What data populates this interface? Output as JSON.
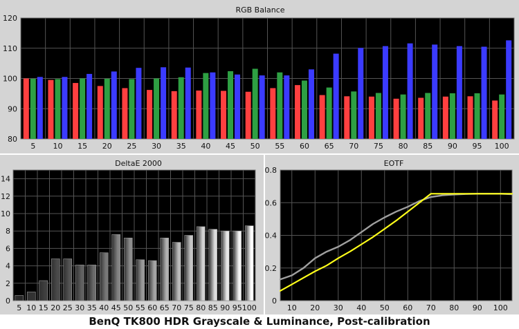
{
  "caption": "BenQ TK800 HDR Grayscale & Luminance, Post-calibration",
  "colors": {
    "panel_bg": "#d4d4d4",
    "plot_bg": "#000000",
    "red": "#ff4040",
    "green": "#2ea043",
    "blue": "#3b3bff",
    "eotf_target": "#ffff1a",
    "eotf_measured": "#a0a0a0"
  },
  "chart_data": [
    {
      "type": "bar",
      "title": "RGB Balance",
      "categories": [
        "5",
        "10",
        "15",
        "20",
        "25",
        "30",
        "35",
        "40",
        "45",
        "50",
        "55",
        "60",
        "65",
        "70",
        "75",
        "80",
        "85",
        "90",
        "95",
        "100"
      ],
      "ylim": [
        80,
        120
      ],
      "yticks": [
        "80",
        "90",
        "100",
        "110",
        "120"
      ],
      "grid": true,
      "series": [
        {
          "color": "red",
          "values": [
            100,
            99.5,
            98.5,
            97.5,
            96.8,
            96.2,
            95.8,
            96,
            95.9,
            95.6,
            96.8,
            97.8,
            94.5,
            94.1,
            94,
            93.3,
            93.6,
            94,
            94.1,
            92.7
          ]
        },
        {
          "color": "green",
          "values": [
            99.9,
            99.8,
            100,
            99.9,
            99.8,
            100,
            100.4,
            101.8,
            102.4,
            103.2,
            102,
            99.3,
            97,
            95.7,
            95.2,
            94.7,
            95.2,
            95.1,
            95.1,
            94.7
          ]
        },
        {
          "color": "blue",
          "values": [
            100.5,
            100.5,
            101.5,
            102.3,
            103.5,
            103.7,
            103.6,
            102,
            101.3,
            101,
            101,
            103,
            108.2,
            110.1,
            110.7,
            111.6,
            111.2,
            110.7,
            110.5,
            112.6
          ]
        }
      ]
    },
    {
      "type": "bar",
      "title": "DeltaE 2000",
      "categories": [
        "5",
        "10",
        "15",
        "20",
        "25",
        "30",
        "35",
        "40",
        "45",
        "50",
        "55",
        "60",
        "65",
        "70",
        "75",
        "80",
        "85",
        "90",
        "95",
        "100"
      ],
      "values": [
        0.6,
        1.0,
        2.3,
        4.8,
        4.8,
        4.1,
        4.1,
        5.5,
        7.6,
        7.2,
        4.7,
        4.6,
        7.2,
        6.7,
        7.5,
        8.5,
        8.2,
        8.0,
        8.0,
        8.6
      ],
      "ylim": [
        0,
        15
      ],
      "yticks": [
        "0",
        "2",
        "4",
        "6",
        "8",
        "10",
        "12",
        "14"
      ],
      "grid": true
    },
    {
      "type": "line",
      "title": "EOTF",
      "xlim": [
        5,
        105
      ],
      "ylim": [
        0,
        0.8
      ],
      "xticks": [
        "10",
        "20",
        "30",
        "40",
        "50",
        "60",
        "70",
        "80",
        "90",
        "100"
      ],
      "yticks": [
        "0",
        "0.2",
        "0.4",
        "0.6",
        "0.8"
      ],
      "grid": true,
      "series": [
        {
          "color": "eotf_target",
          "x": [
            5,
            10,
            15,
            20,
            25,
            30,
            35,
            40,
            45,
            50,
            55,
            60,
            65,
            70,
            75,
            80,
            85,
            90,
            95,
            100,
            105
          ],
          "y": [
            0.06,
            0.1,
            0.14,
            0.18,
            0.215,
            0.26,
            0.3,
            0.345,
            0.39,
            0.44,
            0.49,
            0.545,
            0.6,
            0.655,
            0.655,
            0.655,
            0.655,
            0.655,
            0.655,
            0.655,
            0.655
          ]
        },
        {
          "color": "eotf_measured",
          "x": [
            5,
            10,
            15,
            20,
            25,
            30,
            35,
            40,
            45,
            50,
            55,
            60,
            65,
            70,
            75,
            80,
            85,
            90,
            95,
            100,
            105
          ],
          "y": [
            0.13,
            0.155,
            0.2,
            0.26,
            0.3,
            0.33,
            0.37,
            0.42,
            0.47,
            0.51,
            0.545,
            0.575,
            0.61,
            0.635,
            0.645,
            0.65,
            0.653,
            0.655,
            0.655,
            0.655,
            0.652
          ]
        }
      ]
    }
  ]
}
